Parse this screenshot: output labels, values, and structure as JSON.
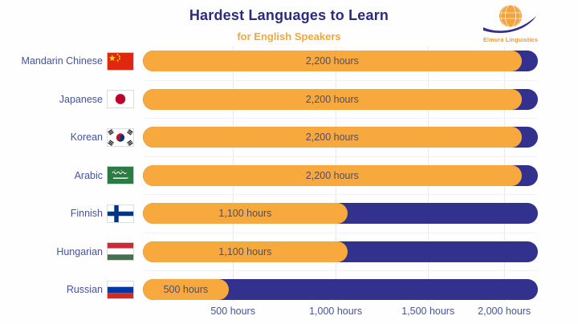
{
  "header": {
    "title": "Hardest Languages to Learn",
    "subtitle": "for English Speakers",
    "logo_text": "Elmura Linguistics"
  },
  "colors": {
    "bar_fill_orange": "#F7A93D",
    "bar_track_navy": "#32318D",
    "title_navy": "#2B2B80",
    "label_blue": "#4353A4",
    "subtitle_orange": "#F0A93F",
    "gridline": "#E9E9F2"
  },
  "chart_data": {
    "type": "bar",
    "orientation": "horizontal",
    "title": "Hardest Languages to Learn",
    "subtitle": "for English Speakers",
    "xlabel": "",
    "ylabel": "",
    "xlim": [
      0,
      2300
    ],
    "grid": true,
    "legend": false,
    "categories": [
      "Mandarin Chinese",
      "Japanese",
      "Korean",
      "Arabic",
      "Finnish",
      "Hungarian",
      "Russian"
    ],
    "values": [
      2200,
      2200,
      2200,
      2200,
      1100,
      1100,
      500
    ],
    "value_labels": [
      "2,200 hours",
      "2,200 hours",
      "2,200 hours",
      "2,200 hours",
      "1,100 hours",
      "1,100 hours",
      "500 hours"
    ],
    "flags": [
      "china",
      "japan",
      "south-korea",
      "saudi-arabia",
      "finland",
      "hungary",
      "russia"
    ],
    "fill_pct": [
      95.9,
      95.9,
      95.9,
      95.9,
      51.8,
      51.8,
      21.7
    ],
    "x_ticks": {
      "labels": [
        "500 hours",
        "1,000 hours",
        "1,500 hours",
        "2,000 hours"
      ],
      "positions_pct": [
        22.8,
        48.8,
        72.2,
        91.5
      ]
    },
    "bar_colors": {
      "fill": "#F7A93D",
      "track": "#32318D"
    }
  }
}
